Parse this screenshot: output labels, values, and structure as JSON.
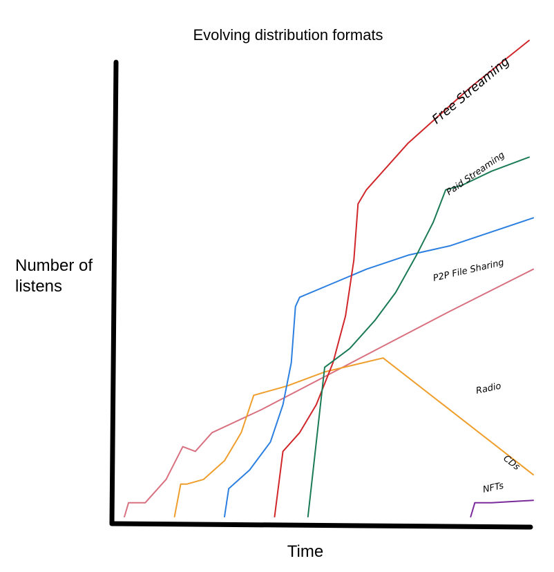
{
  "chart_data": {
    "type": "line",
    "title": "Evolving distribution formats",
    "xlabel": "Time",
    "ylabel_lines": [
      "Number of",
      "listens"
    ],
    "grid": false,
    "legend": "none",
    "series": [
      {
        "name": "Radio",
        "color": "#d9707f",
        "points": [
          [
            0.02,
            0.0
          ],
          [
            0.03,
            0.03
          ],
          [
            0.07,
            0.03
          ],
          [
            0.12,
            0.08
          ],
          [
            0.16,
            0.15
          ],
          [
            0.19,
            0.14
          ],
          [
            0.23,
            0.18
          ],
          [
            0.35,
            0.23
          ],
          [
            0.5,
            0.3
          ],
          [
            0.65,
            0.37
          ],
          [
            0.8,
            0.44
          ],
          [
            1.0,
            0.53
          ]
        ]
      },
      {
        "name": "CDs",
        "color": "#ef9e2c",
        "points": [
          [
            0.14,
            0.0
          ],
          [
            0.155,
            0.07
          ],
          [
            0.17,
            0.07
          ],
          [
            0.21,
            0.08
          ],
          [
            0.26,
            0.12
          ],
          [
            0.3,
            0.18
          ],
          [
            0.33,
            0.26
          ],
          [
            0.41,
            0.28
          ],
          [
            0.5,
            0.31
          ],
          [
            0.64,
            0.34
          ],
          [
            1.0,
            0.09
          ]
        ]
      },
      {
        "name": "P2P File Sharing",
        "color": "#2b7fe0",
        "points": [
          [
            0.26,
            0.0
          ],
          [
            0.27,
            0.06
          ],
          [
            0.32,
            0.1
          ],
          [
            0.37,
            0.16
          ],
          [
            0.4,
            0.24
          ],
          [
            0.42,
            0.33
          ],
          [
            0.43,
            0.45
          ],
          [
            0.44,
            0.47
          ],
          [
            0.52,
            0.5
          ],
          [
            0.6,
            0.53
          ],
          [
            0.7,
            0.56
          ],
          [
            0.8,
            0.58
          ],
          [
            1.0,
            0.64
          ]
        ]
      },
      {
        "name": "Free Streaming",
        "color": "#d0262a",
        "points": [
          [
            0.38,
            0.0
          ],
          [
            0.4,
            0.14
          ],
          [
            0.44,
            0.18
          ],
          [
            0.48,
            0.24
          ],
          [
            0.52,
            0.33
          ],
          [
            0.55,
            0.43
          ],
          [
            0.57,
            0.55
          ],
          [
            0.58,
            0.67
          ],
          [
            0.6,
            0.7
          ],
          [
            0.7,
            0.8
          ],
          [
            0.85,
            0.92
          ],
          [
            0.99,
            1.02
          ]
        ]
      },
      {
        "name": "Paid Streaming",
        "color": "#1a7a55",
        "points": [
          [
            0.46,
            0.0
          ],
          [
            0.5,
            0.32
          ],
          [
            0.56,
            0.36
          ],
          [
            0.62,
            0.42
          ],
          [
            0.67,
            0.48
          ],
          [
            0.72,
            0.56
          ],
          [
            0.76,
            0.63
          ],
          [
            0.79,
            0.7
          ],
          [
            0.83,
            0.71
          ],
          [
            0.9,
            0.74
          ],
          [
            0.99,
            0.77
          ]
        ]
      },
      {
        "name": "NFTs",
        "color": "#7a2a9a",
        "points": [
          [
            0.85,
            0.0
          ],
          [
            0.86,
            0.03
          ],
          [
            0.9,
            0.03
          ],
          [
            1.0,
            0.035
          ]
        ]
      }
    ]
  },
  "labels": {
    "Radio": "Radio",
    "CDs": "CDs",
    "P2P File Sharing": "P2P File Sharing",
    "Free Streaming": "Free Streaming",
    "Paid Streaming": "Paid Streaming",
    "NFTs": "NFTs"
  }
}
